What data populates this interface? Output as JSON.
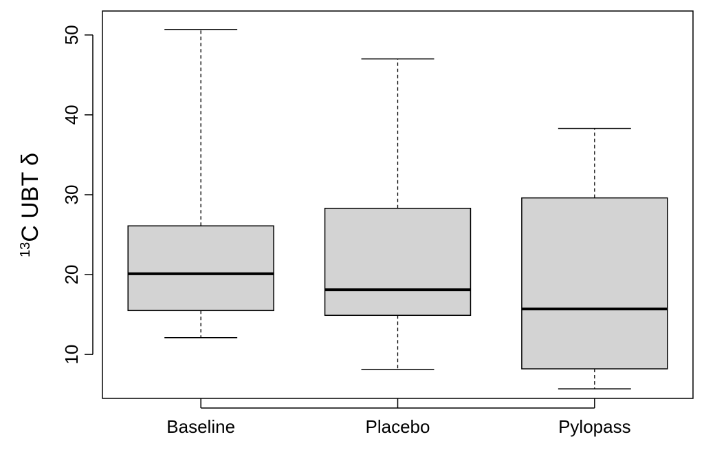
{
  "chart_data": {
    "type": "boxplot",
    "title": "",
    "xlabel": "",
    "ylabel": {
      "superscript": "13",
      "text": "C UBT δ"
    },
    "ylim": [
      4.5,
      53
    ],
    "yticks": [
      10,
      20,
      30,
      40,
      50
    ],
    "categories": [
      "Baseline",
      "Placebo",
      "Pylopass"
    ],
    "boxes": [
      {
        "name": "Baseline",
        "whisker_low": 12.1,
        "q1": 15.5,
        "median": 20.1,
        "q3": 26.1,
        "whisker_high": 50.7
      },
      {
        "name": "Placebo",
        "whisker_low": 8.1,
        "q1": 14.9,
        "median": 18.1,
        "q3": 28.3,
        "whisker_high": 47.0
      },
      {
        "name": "Pylopass",
        "whisker_low": 5.7,
        "q1": 8.2,
        "median": 15.7,
        "q3": 29.6,
        "whisker_high": 38.3
      }
    ],
    "grid": false,
    "legend": "none",
    "box_fill": "#d3d3d3",
    "line_color": "#000000"
  }
}
